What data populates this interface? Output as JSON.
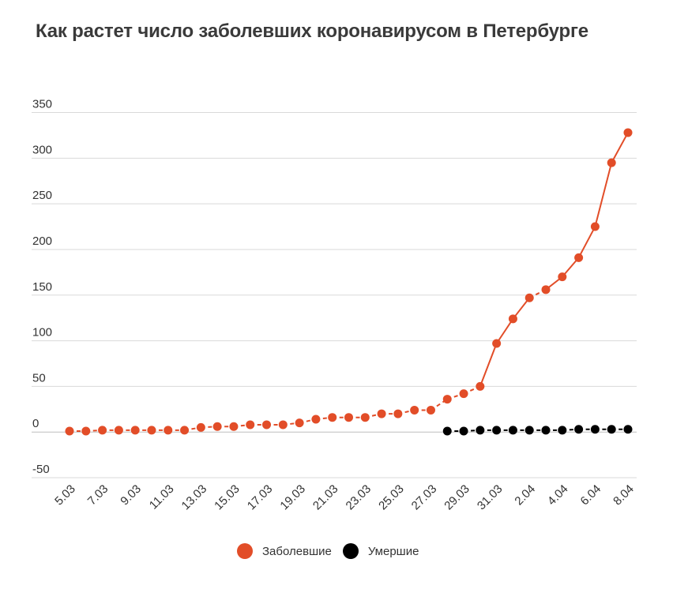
{
  "chart_data": {
    "type": "line",
    "title": "Как растет число заболевших коронавирусом в Петербурге",
    "xlabel": "",
    "ylabel": "",
    "ylim": [
      -50,
      350
    ],
    "yticks": [
      350,
      300,
      250,
      200,
      150,
      100,
      50,
      0,
      -50
    ],
    "x": [
      "5.03",
      "6.03",
      "7.03",
      "8.03",
      "9.03",
      "10.03",
      "11.03",
      "12.03",
      "13.03",
      "14.03",
      "15.03",
      "16.03",
      "17.03",
      "18.03",
      "19.03",
      "20.03",
      "21.03",
      "22.03",
      "23.03",
      "24.03",
      "25.03",
      "26.03",
      "27.03",
      "28.03",
      "29.03",
      "30.03",
      "31.03",
      "1.04",
      "2.04",
      "3.04",
      "4.04",
      "5.04",
      "6.04",
      "7.04",
      "8.04"
    ],
    "xtick_labels": [
      "5.03",
      "7.03",
      "9.03",
      "11.03",
      "13.03",
      "15.03",
      "17.03",
      "19.03",
      "21.03",
      "23.03",
      "25.03",
      "27.03",
      "29.03",
      "31.03",
      "2.04",
      "4.04",
      "6.04",
      "8.04"
    ],
    "grid": true,
    "legend_position": "bottom",
    "series": [
      {
        "name": "Заболевшие",
        "color": "#e24d28",
        "values": [
          1,
          1,
          2,
          2,
          2,
          2,
          2,
          2,
          5,
          6,
          6,
          8,
          8,
          8,
          10,
          14,
          16,
          16,
          16,
          20,
          20,
          24,
          24,
          36,
          42,
          50,
          97,
          124,
          147,
          156,
          170,
          191,
          225,
          295,
          328
        ]
      },
      {
        "name": "Умершие",
        "color": "#000000",
        "values": [
          null,
          null,
          null,
          null,
          null,
          null,
          null,
          null,
          null,
          null,
          null,
          null,
          null,
          null,
          null,
          null,
          null,
          null,
          null,
          null,
          null,
          null,
          null,
          1,
          1,
          2,
          2,
          2,
          2,
          2,
          2,
          3,
          3,
          3,
          3
        ]
      }
    ]
  },
  "legend": {
    "items": [
      {
        "label": "Заболевшие",
        "color": "#e24d28"
      },
      {
        "label": "Умершие",
        "color": "#000000"
      }
    ]
  }
}
